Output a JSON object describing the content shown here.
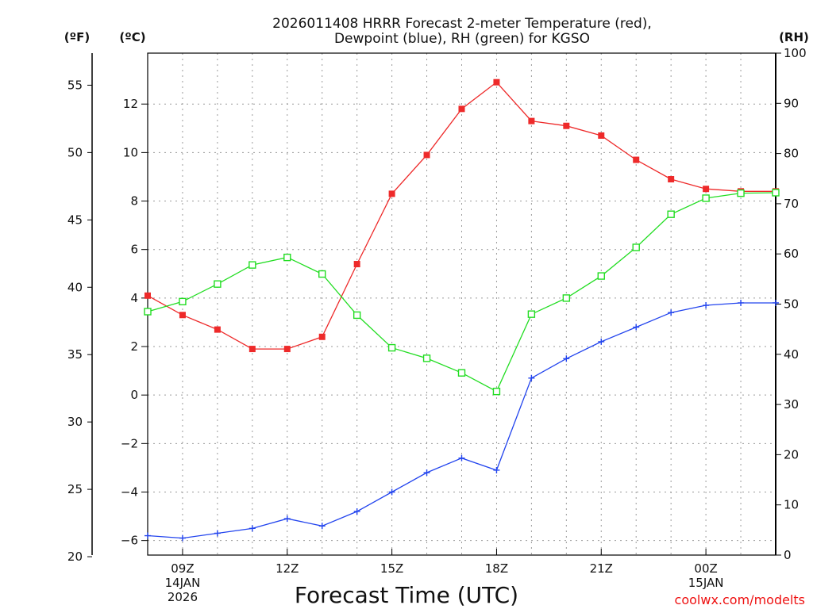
{
  "chart_data": {
    "type": "line",
    "title_lines": [
      "2026011408 HRRR Forecast 2-meter Temperature (red),",
      "Dewpoint (blue), RH (green) for KGSO"
    ],
    "xlabel": "Forecast Time (UTC)",
    "credit": "coolwx.com/modelts",
    "x_ticks": [
      {
        "hour": 9,
        "lines": [
          "09Z",
          "14JAN",
          "2026"
        ]
      },
      {
        "hour": 12,
        "lines": [
          "12Z"
        ]
      },
      {
        "hour": 15,
        "lines": [
          "15Z"
        ]
      },
      {
        "hour": 18,
        "lines": [
          "18Z"
        ]
      },
      {
        "hour": 21,
        "lines": [
          "21Z"
        ]
      },
      {
        "hour": 24,
        "lines": [
          "00Z",
          "15JAN"
        ]
      }
    ],
    "x_range": [
      8,
      26
    ],
    "axes": {
      "celsius": {
        "label": "(ºC)",
        "range": [
          -6.6,
          14.1
        ],
        "ticks": [
          -6,
          -4,
          -2,
          0,
          2,
          4,
          6,
          8,
          10,
          12
        ]
      },
      "fahrenheit": {
        "label": "(ºF)",
        "range": [
          20.12,
          57.38
        ],
        "ticks": [
          20,
          25,
          30,
          35,
          40,
          45,
          50,
          55
        ]
      },
      "rh": {
        "label": "(RH)",
        "range": [
          0,
          100
        ],
        "ticks": [
          0,
          10,
          20,
          30,
          40,
          50,
          60,
          70,
          80,
          90,
          100
        ]
      }
    },
    "hours": [
      8,
      9,
      10,
      11,
      12,
      13,
      14,
      15,
      16,
      17,
      18,
      19,
      20,
      21,
      22,
      23,
      24,
      25,
      26
    ],
    "series": [
      {
        "name": "Temperature",
        "unit": "C",
        "color": "#ee2a2a",
        "marker": "filled-square",
        "values": [
          4.1,
          3.3,
          2.7,
          1.9,
          1.9,
          2.4,
          5.4,
          8.3,
          9.9,
          11.8,
          12.9,
          11.3,
          11.1,
          10.7,
          9.7,
          8.9,
          8.5,
          8.4,
          8.4
        ]
      },
      {
        "name": "Dewpoint",
        "unit": "C",
        "color": "#2244ee",
        "marker": "plus",
        "values": [
          -5.8,
          -5.9,
          -5.7,
          -5.5,
          -5.1,
          -5.4,
          -4.8,
          -4.0,
          -3.2,
          -2.6,
          -3.1,
          0.7,
          1.5,
          2.2,
          2.8,
          3.4,
          3.7,
          3.8,
          3.8
        ]
      },
      {
        "name": "RH",
        "unit": "%",
        "color": "#22dd22",
        "marker": "open-square",
        "values": [
          48.5,
          50.5,
          54.0,
          57.8,
          59.3,
          56.0,
          47.8,
          41.3,
          39.2,
          36.3,
          32.6,
          48.0,
          51.2,
          55.6,
          61.3,
          67.9,
          71.1,
          72.1,
          72.2
        ]
      }
    ]
  }
}
